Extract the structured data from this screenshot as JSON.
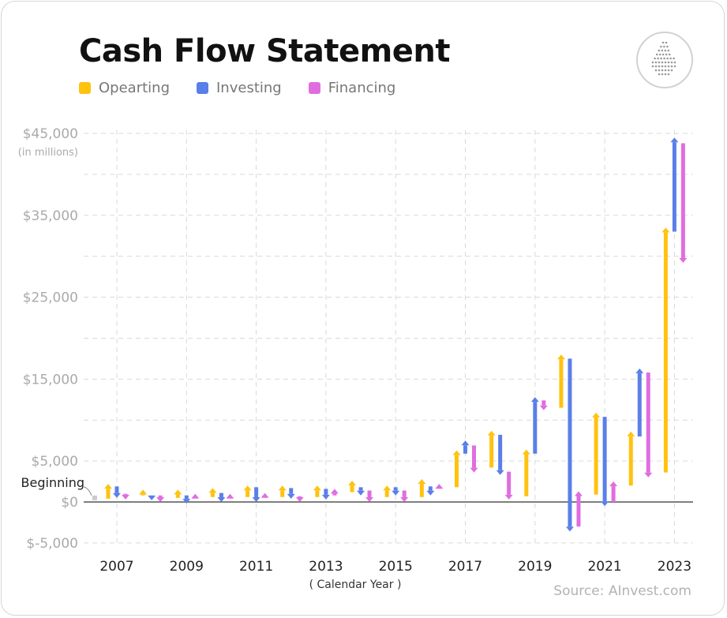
{
  "title": "Cash Flow Statement",
  "legend": [
    {
      "label": "Opearting",
      "color": "#FFC20E"
    },
    {
      "label": "Investing",
      "color": "#5B7FE8"
    },
    {
      "label": "Financing",
      "color": "#E06DE0"
    }
  ],
  "logo_icon": "droplet-logo-icon",
  "source": "Source: AInvest.com",
  "chart_data": {
    "type": "waterfall-arrows",
    "title": "Cash Flow Statement",
    "xlabel": "( Calendar Year )",
    "ylabel": "(in millions)",
    "ylim": [
      -5000,
      45000
    ],
    "yticks": [
      {
        "value": 45000,
        "label": "$45,000"
      },
      {
        "value": 35000,
        "label": "$35,000"
      },
      {
        "value": 25000,
        "label": "$25,000"
      },
      {
        "value": 15000,
        "label": "$15,000"
      },
      {
        "value": 5000,
        "label": "$5,000"
      },
      {
        "value": 0,
        "label": "$0"
      },
      {
        "value": -5000,
        "label": "$-5,000"
      }
    ],
    "gridlines_dashed_every": 5000,
    "xtick_labels": [
      "2007",
      "2009",
      "2011",
      "2013",
      "2015",
      "2017",
      "2019",
      "2021",
      "2023"
    ],
    "beginning": {
      "label": "Beginning",
      "value": 400
    },
    "categories": [
      "2007",
      "2008",
      "2009",
      "2010",
      "2011",
      "2012",
      "2013",
      "2014",
      "2015",
      "2016",
      "2017",
      "2018",
      "2019",
      "2020",
      "2021",
      "2022",
      "2023"
    ],
    "series": [
      {
        "name": "Opearting",
        "color": "#FFC20E",
        "values": [
          {
            "from": 400,
            "to": 2200
          },
          {
            "from": 800,
            "to": 1500
          },
          {
            "from": 500,
            "to": 1500
          },
          {
            "from": 600,
            "to": 1700
          },
          {
            "from": 600,
            "to": 2000
          },
          {
            "from": 600,
            "to": 2000
          },
          {
            "from": 600,
            "to": 2000
          },
          {
            "from": 1200,
            "to": 2600
          },
          {
            "from": 600,
            "to": 2000
          },
          {
            "from": 600,
            "to": 2800
          },
          {
            "from": 1800,
            "to": 6300
          },
          {
            "from": 4200,
            "to": 8700
          },
          {
            "from": 700,
            "to": 6400
          },
          {
            "from": 11500,
            "to": 18000
          },
          {
            "from": 900,
            "to": 10900
          },
          {
            "from": 2000,
            "to": 8600
          },
          {
            "from": 3600,
            "to": 33500
          }
        ]
      },
      {
        "name": "Investing",
        "color": "#5B7FE8",
        "values": [
          {
            "from": 1900,
            "to": 500
          },
          {
            "from": 800,
            "to": 200
          },
          {
            "from": 800,
            "to": -200
          },
          {
            "from": 1100,
            "to": 0
          },
          {
            "from": 1800,
            "to": 0
          },
          {
            "from": 1700,
            "to": 400
          },
          {
            "from": 1600,
            "to": 300
          },
          {
            "from": 1800,
            "to": 800
          },
          {
            "from": 1800,
            "to": 800
          },
          {
            "from": 1900,
            "to": 800
          },
          {
            "from": 5900,
            "to": 7500
          },
          {
            "from": 8200,
            "to": 3300
          },
          {
            "from": 5900,
            "to": 12800
          },
          {
            "from": 17500,
            "to": -3600
          },
          {
            "from": 10400,
            "to": -500
          },
          {
            "from": 8000,
            "to": 16300
          },
          {
            "from": 33000,
            "to": 44500
          }
        ]
      },
      {
        "name": "Financing",
        "color": "#E06DE0",
        "values": [
          {
            "from": 1000,
            "to": 300
          },
          {
            "from": 800,
            "to": 0
          },
          {
            "from": 500,
            "to": 1000
          },
          {
            "from": 500,
            "to": 1000
          },
          {
            "from": 500,
            "to": 1100
          },
          {
            "from": 700,
            "to": 0
          },
          {
            "from": 800,
            "to": 1600
          },
          {
            "from": 1400,
            "to": 0
          },
          {
            "from": 1400,
            "to": 0
          },
          {
            "from": 1600,
            "to": 2200
          },
          {
            "from": 6900,
            "to": 3600
          },
          {
            "from": 3700,
            "to": 300
          },
          {
            "from": 12400,
            "to": 11200
          },
          {
            "from": -3000,
            "to": 1300
          },
          {
            "from": 0,
            "to": 2500
          },
          {
            "from": 15800,
            "to": 3000
          },
          {
            "from": 43800,
            "to": 29200
          }
        ]
      }
    ]
  }
}
